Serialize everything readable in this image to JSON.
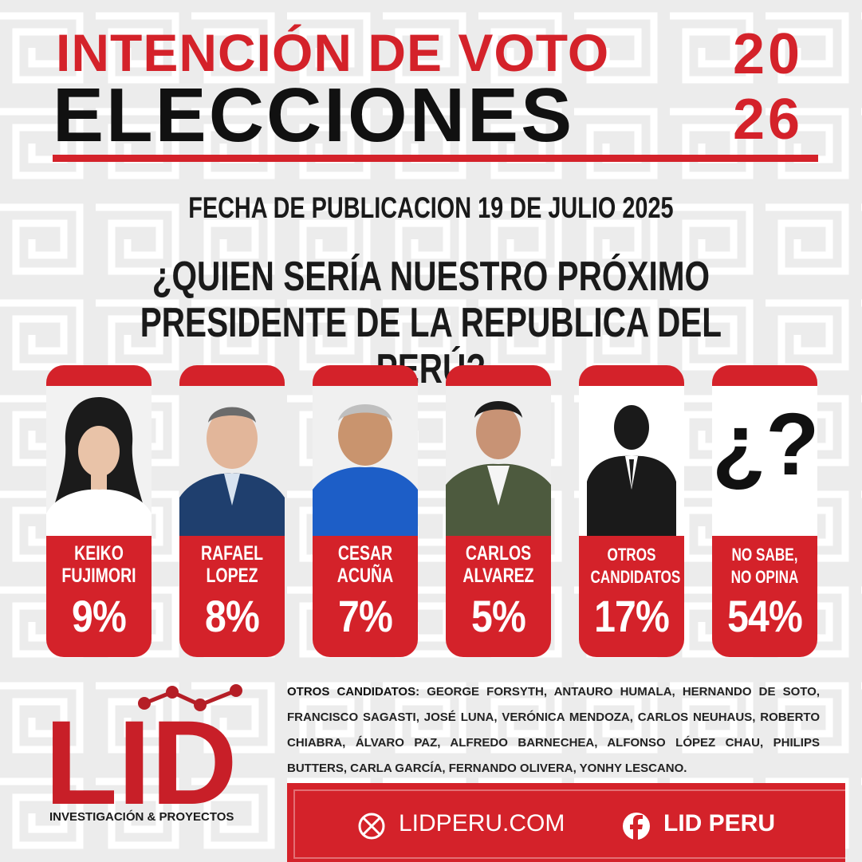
{
  "header": {
    "title_line1": "INTENCIÓN DE VOTO",
    "title_line2": "ELECCIONES",
    "year_top": "20",
    "year_bottom": "26"
  },
  "date_line": "FECHA DE PUBLICACION 19 DE JULIO 2025",
  "question": "¿QUIEN SERÍA NUESTRO PRÓXIMO PRESIDENTE DE LA REPUBLICA DEL PERÚ?",
  "candidates": [
    {
      "name": "KEIKO\nFUJIMORI",
      "percent": "9%"
    },
    {
      "name": "RAFAEL\nLOPEZ",
      "percent": "8%"
    },
    {
      "name": "CESAR\nACUÑA",
      "percent": "7%"
    },
    {
      "name": "CARLOS\nALVAREZ",
      "percent": "5%"
    },
    {
      "name": "OTROS\nCANDIDATOS",
      "percent": "17%"
    },
    {
      "name": "NO SABE,\nNO OPINA",
      "percent": "54%",
      "mark": "¿?"
    }
  ],
  "others": {
    "label": "OTROS CANDIDATOS:",
    "list": "GEORGE FORSYTH, ANTAURO HUMALA, HERNANDO DE SOTO, FRANCISCO SAGASTI, JOSÉ LUNA, VERÓNICA MENDOZA, CARLOS NEUHAUS, ROBERTO CHIABRA, ÁLVARO PAZ, ALFREDO BARNECHEA, ALFONSO LÓPEZ CHAU, PHILIPS BUTTERS, CARLA GARCÍA, FERNANDO OLIVERA, YONHY LESCANO."
  },
  "logo": {
    "text": "LID",
    "subtitle": "INVESTIGACIÓN & PROYECTOS"
  },
  "footer": {
    "website": "LIDPERU.COM",
    "facebook": "LID PERU"
  },
  "colors": {
    "accent": "#d4222a",
    "dark": "#111111"
  }
}
